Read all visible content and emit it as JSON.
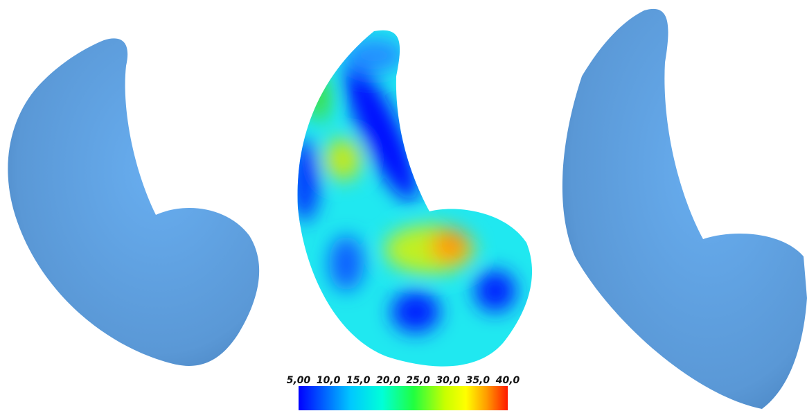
{
  "colorbar": {
    "lim": [
      5,
      40
    ],
    "ticks": [
      {
        "value": 5,
        "label": "5,00"
      },
      {
        "value": 10,
        "label": "10,0"
      },
      {
        "value": 15,
        "label": "15,0"
      },
      {
        "value": 20,
        "label": "20,0"
      },
      {
        "value": 25,
        "label": "25,0"
      },
      {
        "value": 30,
        "label": "30,0"
      },
      {
        "value": 35,
        "label": "35,0"
      },
      {
        "value": 40,
        "label": "40,0"
      }
    ]
  }
}
